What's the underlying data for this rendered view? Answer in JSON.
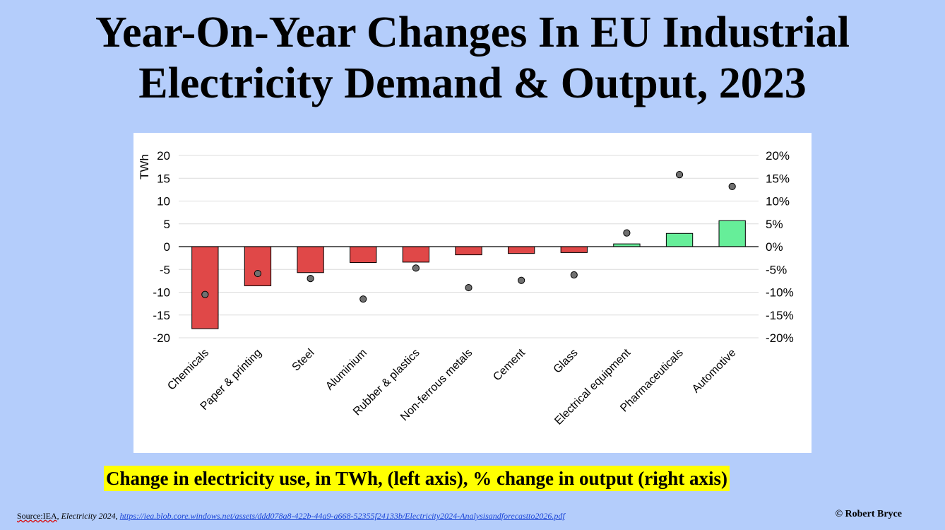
{
  "title_lines": [
    "Year-On-Year Changes In EU Industrial",
    "Electricity Demand & Output, 2023"
  ],
  "caption": "Change in electricity use, in TWh, (left axis), % change in output (right axis)",
  "source": {
    "label": "Source:IEA",
    "separator": ", ",
    "publication": "Electricity 2024",
    "comma": ", ",
    "url_text": "https://iea.blob.core.windows.net/assets/ddd078a8-422b-44a9-a668-52355f24133b/Electricity2024-Analysisandforecastto2026.pdf"
  },
  "copyright": "© Robert Bryce",
  "colors": {
    "background": "#b4cdfb",
    "negative_bar": "#e04848",
    "positive_bar": "#66ee99",
    "marker": "#707070",
    "caption_highlight": "#ffff00"
  },
  "chart_data": {
    "type": "bar",
    "categories": [
      "Chemicals",
      "Paper & printing",
      "Steel",
      "Aluminium",
      "Rubber & plastics",
      "Non-ferrous metals",
      "Cement",
      "Glass",
      "Electrical equipment",
      "Pharmaceuticals",
      "Automotive"
    ],
    "series": [
      {
        "axis": "left",
        "type": "bar",
        "values": [
          -18.0,
          -8.6,
          -5.7,
          -3.5,
          -3.4,
          -1.8,
          -1.5,
          -1.3,
          0.6,
          2.9,
          5.7
        ]
      },
      {
        "axis": "right",
        "type": "scatter",
        "values": [
          -10.5,
          -5.9,
          -7.0,
          -11.5,
          -4.7,
          -9.0,
          -7.4,
          -6.2,
          3.0,
          15.8,
          13.2
        ]
      }
    ],
    "ylabel_left": "TWh",
    "ylim_left": [
      -20,
      20
    ],
    "yticks_left": [
      "20",
      "15",
      "10",
      "5",
      "0",
      "-5",
      "-10",
      "-15",
      "-20"
    ],
    "ylim_right": [
      -20,
      20
    ],
    "yticks_right": [
      "20%",
      "15%",
      "10%",
      "5%",
      "0%",
      "-5%",
      "-10%",
      "-15%",
      "-20%"
    ],
    "grid": true
  }
}
